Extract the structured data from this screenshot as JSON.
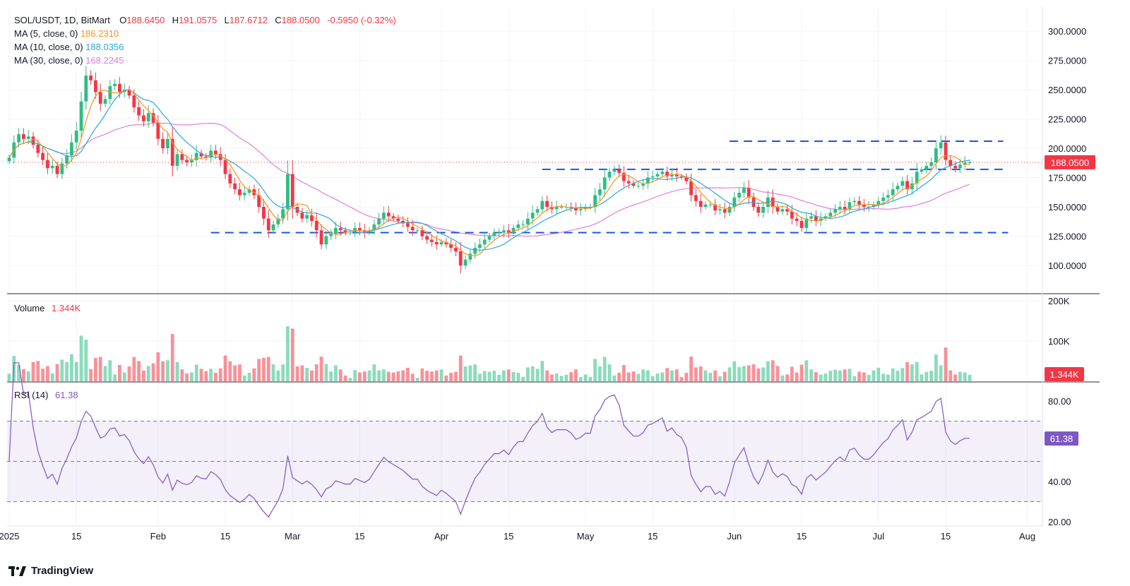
{
  "chart_data": {
    "type": "candlestick",
    "symbol": "SOL/USDT, 1D, BitMart",
    "ohlc": {
      "open_label": "O",
      "open": "188.6450",
      "high_label": "H",
      "high": "191.0575",
      "low_label": "L",
      "low": "187.6712",
      "close_label": "C",
      "close": "188.0500",
      "change": "-0.5950 (-0.32%)"
    },
    "ma5": {
      "label": "MA (5, close, 0)",
      "value": "186.2310",
      "color": "#f7931e"
    },
    "ma10": {
      "label": "MA (10, close, 0)",
      "value": "188.0356",
      "color": "#2ea8d8"
    },
    "ma30": {
      "label": "MA (30, close, 0)",
      "value": "168.2245",
      "color": "#e07fd8"
    },
    "price_ylim": [
      80,
      310
    ],
    "price_ticks": [
      "300.0000",
      "275.0000",
      "250.0000",
      "225.0000",
      "200.0000",
      "175.0000",
      "150.0000",
      "125.0000",
      "100.0000"
    ],
    "price_tick_values": [
      300,
      275,
      250,
      225,
      200,
      175,
      150,
      125,
      100
    ],
    "last_price_label": "188.0500",
    "last_price": 188.05,
    "volume": {
      "label": "Volume",
      "value": "1.344K",
      "ticks": [
        "200K",
        "100K"
      ],
      "tick_values": [
        200000,
        100000
      ],
      "badge": "1.344K"
    },
    "rsi": {
      "label": "RSI (14)",
      "value": "61.38",
      "ticks": [
        "80.00",
        "40.00",
        "20.00"
      ],
      "tick_values": [
        80,
        40,
        20
      ],
      "bands": [
        70,
        50,
        30
      ],
      "badge": "61.38",
      "color": "#7e57c2"
    },
    "x_ticks": [
      "2025",
      "15",
      "Feb",
      "15",
      "Mar",
      "15",
      "Apr",
      "15",
      "May",
      "15",
      "Jun",
      "15",
      "Jul",
      "15",
      "Aug"
    ],
    "x_tick_days": [
      0,
      14,
      31,
      45,
      59,
      73,
      90,
      104,
      120,
      134,
      151,
      165,
      181,
      195,
      212
    ],
    "start_date": "2025-01-01",
    "levels": [
      {
        "price": 206,
        "from_day": 150,
        "to_day": 207
      },
      {
        "price": 182,
        "from_day": 111,
        "to_day": 208
      },
      {
        "price": 128,
        "from_day": 42,
        "to_day": 208
      }
    ],
    "close": [
      192,
      205,
      212,
      208,
      210,
      203,
      196,
      190,
      183,
      185,
      178,
      187,
      194,
      205,
      215,
      240,
      262,
      258,
      248,
      238,
      242,
      253,
      255,
      248,
      250,
      245,
      235,
      228,
      223,
      230,
      222,
      208,
      200,
      208,
      185,
      195,
      190,
      188,
      190,
      196,
      193,
      192,
      198,
      195,
      190,
      178,
      170,
      165,
      160,
      162,
      165,
      160,
      150,
      140,
      130,
      135,
      140,
      148,
      178,
      150,
      145,
      140,
      143,
      138,
      130,
      118,
      125,
      127,
      132,
      130,
      128,
      128,
      132,
      130,
      128,
      130,
      135,
      140,
      145,
      142,
      140,
      138,
      136,
      133,
      130,
      130,
      125,
      122,
      120,
      118,
      120,
      118,
      115,
      112,
      100,
      105,
      110,
      115,
      118,
      122,
      125,
      128,
      128,
      130,
      128,
      132,
      135,
      135,
      140,
      145,
      148,
      155,
      150,
      148,
      150,
      150,
      150,
      149,
      147,
      148,
      150,
      150,
      160,
      165,
      175,
      180,
      182,
      179,
      172,
      170,
      168,
      168,
      170,
      175,
      176,
      178,
      180,
      176,
      178,
      176,
      175,
      172,
      160,
      155,
      150,
      152,
      152,
      147,
      148,
      145,
      150,
      158,
      162,
      166,
      158,
      150,
      145,
      150,
      158,
      150,
      146,
      148,
      146,
      140,
      138,
      132,
      140,
      142,
      138,
      140,
      142,
      145,
      148,
      150,
      148,
      154,
      155,
      152,
      150,
      150,
      152,
      155,
      158,
      160,
      165,
      168,
      172,
      165,
      170,
      180,
      182,
      185,
      188,
      200,
      205,
      190,
      185,
      183,
      186,
      188,
      188
    ]
  },
  "footer": {
    "brand": "TradingView"
  }
}
